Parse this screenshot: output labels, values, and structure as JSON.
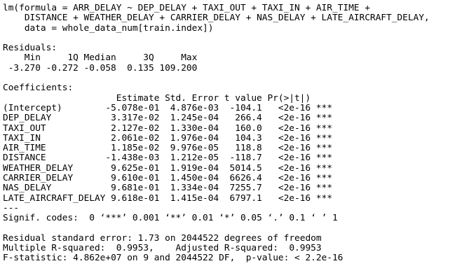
{
  "call": [
    "lm(formula = ARR_DELAY ~ DEP_DELAY + TAXI_OUT + TAXI_IN + AIR_TIME +",
    "DISTANCE + WEATHER_DELAY + CARRIER_DELAY + NAS_DELAY + LATE_AIRCRAFT_DELAY,",
    "data = whole_data_num[train.index])"
  ],
  "residuals": {
    "title": "Residuals:",
    "headers": [
      "Min",
      "1Q",
      "Median",
      "3Q",
      "Max"
    ],
    "values": [
      "-3.270",
      "-0.272",
      "-0.058",
      "0.135",
      "109.200"
    ]
  },
  "coefficients": {
    "title": "Coefficients:",
    "headers": [
      "Estimate",
      "Std. Error",
      "t value",
      "Pr(>|t|)"
    ],
    "rows": [
      [
        "(Intercept)",
        "-5.078e-01",
        "4.876e-03",
        "-104.1",
        "<2e-16",
        "***"
      ],
      [
        "DEP_DELAY",
        "3.317e-02",
        "1.245e-04",
        "266.4",
        "<2e-16",
        "***"
      ],
      [
        "TAXI_OUT",
        "2.127e-02",
        "1.330e-04",
        "160.0",
        "<2e-16",
        "***"
      ],
      [
        "TAXI_IN",
        "2.061e-02",
        "1.976e-04",
        "104.3",
        "<2e-16",
        "***"
      ],
      [
        "AIR_TIME",
        "1.185e-02",
        "9.976e-05",
        "118.8",
        "<2e-16",
        "***"
      ],
      [
        "DISTANCE",
        "-1.438e-03",
        "1.212e-05",
        "-118.7",
        "<2e-16",
        "***"
      ],
      [
        "WEATHER_DELAY",
        "9.625e-01",
        "1.919e-04",
        "5014.5",
        "<2e-16",
        "***"
      ],
      [
        "CARRIER_DELAY",
        "9.610e-01",
        "1.450e-04",
        "6626.4",
        "<2e-16",
        "***"
      ],
      [
        "NAS_DELAY",
        "9.681e-01",
        "1.334e-04",
        "7255.7",
        "<2e-16",
        "***"
      ],
      [
        "LATE_AIRCRAFT_DELAY",
        "9.618e-01",
        "1.415e-04",
        "6797.1",
        "<2e-16",
        "***"
      ]
    ],
    "separator": "---",
    "signif": "Signif. codes:  0 ‘***’ 0.001 ‘**’ 0.01 ‘*’ 0.05 ‘.’ 0.1 ‘ ’ 1"
  },
  "summary": [
    "Residual standard error: 1.73 on 2044522 degrees of freedom",
    "Multiple R-squared:  0.9953,    Adjusted R-squared:  0.9953",
    "F-statistic: 4.862e+07 on 9 and 2044522 DF,  p-value: < 2.2e-16"
  ]
}
